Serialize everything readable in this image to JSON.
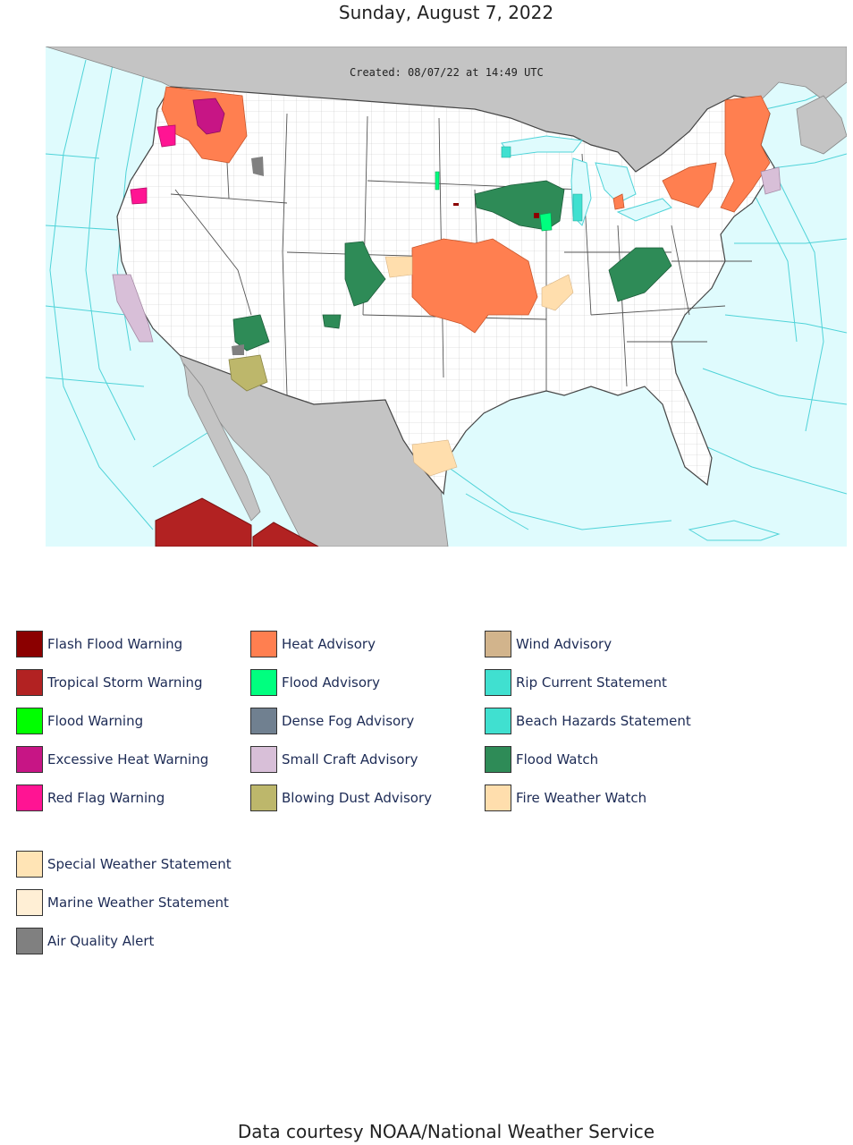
{
  "header": {
    "date": "Sunday, August 7, 2022"
  },
  "map": {
    "created_stamp": "Created: 08/07/22 at 14:49 UTC",
    "colors": {
      "ocean": "#dffbfd",
      "land_foreign": "#c4c4c4",
      "land_us": "#ffffff",
      "county_lines": "#9a9a9a",
      "marine_zone_lines": "#4fd3d8"
    }
  },
  "legend": {
    "columns": [
      [
        {
          "label": "Flash Flood Warning",
          "color": "#8b0000"
        },
        {
          "label": "Tropical Storm Warning",
          "color": "#b22222"
        },
        {
          "label": "Flood Warning",
          "color": "#00ff00"
        },
        {
          "label": "Excessive Heat Warning",
          "color": "#c71585"
        },
        {
          "label": "Red Flag Warning",
          "color": "#ff1493"
        }
      ],
      [
        {
          "label": "Heat Advisory",
          "color": "#ff7f50"
        },
        {
          "label": "Flood Advisory",
          "color": "#00ff7f"
        },
        {
          "label": "Dense Fog Advisory",
          "color": "#708090"
        },
        {
          "label": "Small Craft Advisory",
          "color": "#d8bfd8"
        },
        {
          "label": "Blowing Dust Advisory",
          "color": "#bdb76b"
        }
      ],
      [
        {
          "label": "Wind Advisory",
          "color": "#d2b48c"
        },
        {
          "label": "Rip Current Statement",
          "color": "#40e0d0"
        },
        {
          "label": "Beach Hazards Statement",
          "color": "#40e0d0"
        },
        {
          "label": "Flood Watch",
          "color": "#2e8b57"
        },
        {
          "label": "Fire Weather Watch",
          "color": "#ffdead"
        }
      ]
    ],
    "extra": [
      {
        "label": "Special Weather Statement",
        "color": "#ffe4b5"
      },
      {
        "label": "Marine Weather Statement",
        "color": "#ffefd5"
      },
      {
        "label": "Air Quality Alert",
        "color": "#808080"
      }
    ]
  },
  "footer": {
    "credit": "Data courtesy NOAA/National Weather Service"
  }
}
